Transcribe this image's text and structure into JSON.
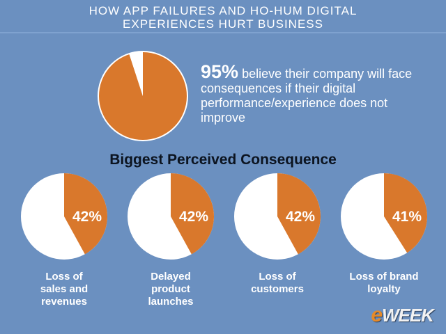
{
  "header": {
    "title_line1": "HOW APP FAILURES AND HO-HUM DIGITAL",
    "title_line2": "EXPERIENCES HURT BUSINESS"
  },
  "headline": {
    "stat": "95%",
    "text": "believe their company will face consequences if their digital performance/experience does not improve"
  },
  "section_title": "Biggest Perceived Consequence",
  "logo": {
    "e": "e",
    "rest": "WEEK"
  },
  "colors": {
    "background": "#6b90c0",
    "accent": "#d9782c",
    "pie_bg": "#ffffff"
  },
  "chart_data": [
    {
      "type": "pie",
      "title": "",
      "slices": [
        {
          "label": "believe their company will face consequences",
          "value": 95
        },
        {
          "label": "",
          "value": 5
        }
      ]
    },
    {
      "type": "pie",
      "title": "Biggest Perceived Consequence",
      "series": [
        {
          "name": "Loss of sales and revenues",
          "value": 42,
          "display": "42%"
        },
        {
          "name": "Delayed product launches",
          "value": 42,
          "display": "42%"
        },
        {
          "name": "Loss of customers",
          "value": 42,
          "display": "42%"
        },
        {
          "name": "Loss of brand loyalty",
          "value": 41,
          "display": "41%"
        }
      ]
    }
  ],
  "captions": [
    [
      "Loss of",
      "sales and",
      "revenues"
    ],
    [
      "Delayed",
      "product",
      "launches"
    ],
    [
      "Loss of",
      "customers",
      ""
    ],
    [
      "Loss of brand",
      "loyalty",
      ""
    ]
  ]
}
